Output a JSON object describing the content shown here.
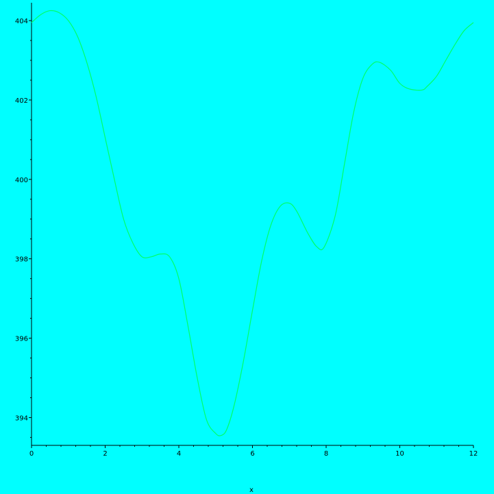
{
  "colors": {
    "background": "#00ffff",
    "curve": "#00ff66",
    "axis": "#000000"
  },
  "chart_data": {
    "type": "line",
    "title": "",
    "xlabel": "x",
    "ylabel": "",
    "xlim": [
      0,
      12
    ],
    "ylim": [
      393.3,
      404.45
    ],
    "grid": false,
    "x_ticks": [
      0,
      2,
      4,
      6,
      8,
      10,
      12
    ],
    "y_ticks": [
      394,
      396,
      398,
      400,
      402,
      404
    ],
    "series": [
      {
        "x": [
          0,
          0.25,
          0.5,
          0.75,
          1.0,
          1.25,
          1.5,
          1.75,
          2.0,
          2.25,
          2.5,
          2.75,
          3.0,
          3.25,
          3.5,
          3.75,
          4.0,
          4.25,
          4.5,
          4.75,
          5.0,
          5.15,
          5.3,
          5.5,
          5.75,
          6.0,
          6.25,
          6.5,
          6.75,
          7.0,
          7.2,
          7.5,
          7.75,
          7.95,
          8.25,
          8.5,
          8.75,
          9.0,
          9.25,
          9.45,
          9.75,
          10.0,
          10.25,
          10.6,
          10.75,
          11.0,
          11.25,
          11.5,
          11.75,
          12.0
        ],
        "values": [
          403.95,
          404.15,
          404.25,
          404.2,
          404.0,
          403.6,
          402.95,
          402.1,
          401.05,
          400.0,
          399.0,
          398.4,
          398.05,
          398.05,
          398.12,
          398.05,
          397.5,
          396.3,
          395.0,
          393.95,
          393.6,
          393.55,
          393.7,
          394.3,
          395.4,
          396.7,
          397.95,
          398.85,
          399.32,
          399.4,
          399.2,
          398.65,
          398.3,
          398.3,
          399.1,
          400.4,
          401.7,
          402.55,
          402.9,
          402.95,
          402.75,
          402.42,
          402.28,
          402.25,
          402.35,
          402.6,
          403.0,
          403.4,
          403.75,
          403.95
        ]
      }
    ]
  }
}
